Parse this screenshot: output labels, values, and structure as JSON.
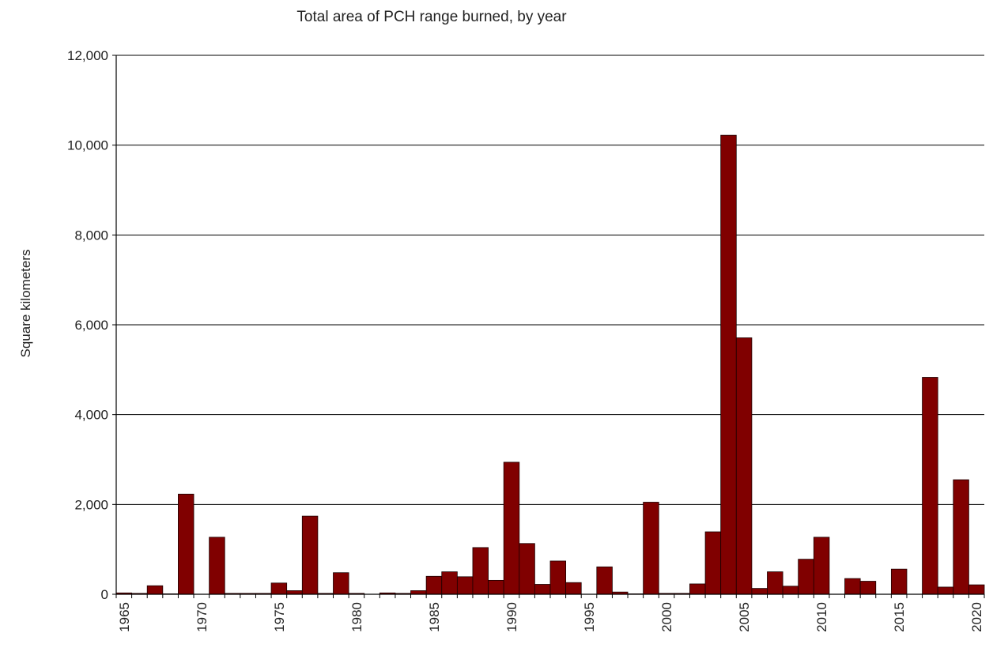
{
  "chart_data": {
    "type": "bar",
    "title": "Total area of PCH range burned, by year",
    "xlabel": "",
    "ylabel": "Square kilometers",
    "ylim": [
      0,
      12000
    ],
    "y_ticks": [
      "0",
      "2,000",
      "4,000",
      "6,000",
      "8,000",
      "10,000",
      "12,000"
    ],
    "x_tick_labels": [
      "1965",
      "1970",
      "1975",
      "1980",
      "1985",
      "1990",
      "1995",
      "2000",
      "2005",
      "2010",
      "2015",
      "2020"
    ],
    "grid": true,
    "legend": "none",
    "bar_color": "#800000",
    "categories": [
      1965,
      1966,
      1967,
      1968,
      1969,
      1970,
      1971,
      1972,
      1973,
      1974,
      1975,
      1976,
      1977,
      1978,
      1979,
      1980,
      1981,
      1982,
      1983,
      1984,
      1985,
      1986,
      1987,
      1988,
      1989,
      1990,
      1991,
      1992,
      1993,
      1994,
      1995,
      1996,
      1997,
      1998,
      1999,
      2000,
      2001,
      2002,
      2003,
      2004,
      2005,
      2006,
      2007,
      2008,
      2009,
      2010,
      2011,
      2012,
      2013,
      2014,
      2015,
      2016,
      2017,
      2018,
      2019,
      2020
    ],
    "values": [
      30,
      20,
      190,
      10,
      2230,
      0,
      1270,
      20,
      20,
      20,
      250,
      80,
      1740,
      20,
      480,
      20,
      0,
      30,
      20,
      80,
      400,
      500,
      390,
      1040,
      310,
      2940,
      1130,
      220,
      740,
      260,
      0,
      610,
      50,
      10,
      2050,
      20,
      20,
      230,
      1390,
      10220,
      5710,
      130,
      500,
      180,
      780,
      1270,
      0,
      350,
      290,
      0,
      560,
      0,
      4830,
      160,
      2550,
      210
    ]
  }
}
